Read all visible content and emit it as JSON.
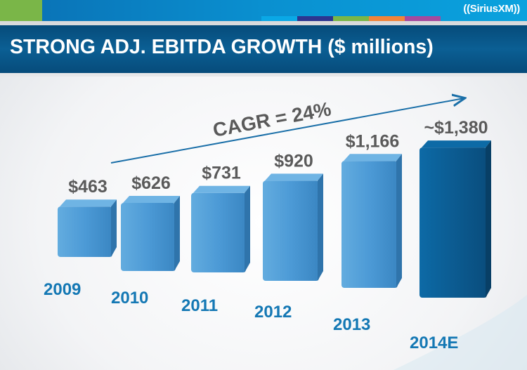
{
  "header": {
    "logo": "((SiriusXM))",
    "title": "STRONG ADJ. EBITDA GROWTH ($ millions)"
  },
  "colors": {
    "bar": "#4c9ad6",
    "bar_highlight": "#0b5a8f",
    "year": "#1478b4",
    "value": "#5a5a5a",
    "arrow": "#1a6fa8"
  },
  "stripes": [
    "#0aa8e6",
    "#2c3590",
    "#7ab648",
    "#f0843a",
    "#a54a9e"
  ],
  "chart_data": {
    "type": "bar",
    "title": "STRONG ADJ. EBITDA GROWTH ($ millions)",
    "categories": [
      "2009",
      "2010",
      "2011",
      "2012",
      "2013",
      "2014E"
    ],
    "values": [
      463,
      626,
      731,
      920,
      1166,
      1380
    ],
    "labels": [
      "$463",
      "$626",
      "$731",
      "$920",
      "$1,166",
      "~$1,380"
    ],
    "highlight_index": 5,
    "annotation": "CAGR = 24%",
    "xlabel": "",
    "ylabel": ""
  }
}
